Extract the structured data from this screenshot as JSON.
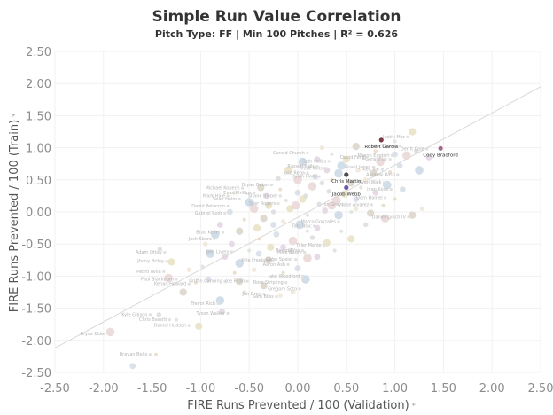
{
  "chart_data": {
    "type": "scatter",
    "title": "Simple Run Value Correlation",
    "subtitle": "Pitch Type: FF | Min 100 Pitches | R² = 0.626",
    "xlabel": "FIRE Runs Prevented / 100 (Validation)",
    "ylabel": "FIRE Runs Prevented / 100 (Train)",
    "axis_marker": "⁎",
    "xlim": [
      -2.5,
      2.5
    ],
    "ylim": [
      -2.5,
      2.5
    ],
    "xticks": [
      "-2.50",
      "-2.00",
      "-1.50",
      "-1.00",
      "-0.50",
      "0.00",
      "0.50",
      "1.00",
      "1.50",
      "2.00",
      "2.50"
    ],
    "yticks": [
      "2.50",
      "2.00",
      "1.50",
      "1.00",
      "0.50",
      "0.00",
      "-0.50",
      "-1.00",
      "-1.50",
      "-2.00",
      "-2.50"
    ],
    "grid": true,
    "trend_line": {
      "x1": -2.5,
      "y1": -2.12,
      "x2": 2.5,
      "y2": 1.95
    },
    "highlighted_points": [
      {
        "label": "Robert Garcia",
        "x": 0.86,
        "y": 1.12,
        "color": "#7a3b46"
      },
      {
        "label": "Cody Bradford",
        "x": 1.47,
        "y": 0.99,
        "color": "#9e6b8e"
      },
      {
        "label": "Chris Martin",
        "x": 0.5,
        "y": 0.58,
        "color": "#4a4a4a"
      },
      {
        "label": "Jacob Webb",
        "x": 0.5,
        "y": 0.38,
        "color": "#6b5aa8"
      }
    ],
    "labeled_points": [
      {
        "label": "Justin Mar",
        "x": 1.13,
        "y": 1.17
      },
      {
        "label": "Jake Thomp",
        "x": 1.05,
        "y": 1.03
      },
      {
        "label": "Gerrit Cole",
        "x": 1.33,
        "y": 0.98
      },
      {
        "label": "Mason Englert",
        "x": 0.97,
        "y": 0.88
      },
      {
        "label": "Gerald Jar",
        "x": 0.95,
        "y": 0.82
      },
      {
        "label": "David Ferg",
        "x": 0.71,
        "y": 0.85
      },
      {
        "label": "Gerald Church",
        "x": 0.1,
        "y": 0.92
      },
      {
        "label": "Grant Jones",
        "x": 0.78,
        "y": 0.7
      },
      {
        "label": "Seth Halbs",
        "x": 0.32,
        "y": 0.79
      },
      {
        "label": "Trent Mills",
        "x": 0.28,
        "y": 0.68
      },
      {
        "label": "Alex Var",
        "x": 0.87,
        "y": 0.66
      },
      {
        "label": "Russell Kells",
        "x": 0.2,
        "y": 0.71
      },
      {
        "label": "Jose Rega",
        "x": 0.1,
        "y": 0.61
      },
      {
        "label": "Andrew Bash",
        "x": 1.03,
        "y": 0.58
      },
      {
        "label": "Dylan Floro",
        "x": 0.22,
        "y": 0.55
      },
      {
        "label": "Ryan Walk",
        "x": 0.89,
        "y": 0.46
      },
      {
        "label": "Ivan Kose",
        "x": 0.96,
        "y": 0.35
      },
      {
        "label": "Dom Hamel",
        "x": 0.9,
        "y": 0.22
      },
      {
        "label": "Jose Alvarez",
        "x": 0.76,
        "y": 0.11
      },
      {
        "label": "Jon Grays",
        "x": 0.5,
        "y": 0.12
      },
      {
        "label": "Daniel Lynch IV",
        "x": 1.14,
        "y": -0.08
      },
      {
        "label": "Michael Kopech",
        "x": -0.57,
        "y": 0.37
      },
      {
        "label": "Evan Phillips",
        "x": -0.45,
        "y": 0.3
      },
      {
        "label": "Bryan Baker",
        "x": -0.27,
        "y": 0.42
      },
      {
        "label": "Shane Bieber",
        "x": -0.18,
        "y": 0.25
      },
      {
        "label": "Sean Helm",
        "x": -0.6,
        "y": 0.2
      },
      {
        "label": "Mark Hale",
        "x": -0.72,
        "y": 0.25
      },
      {
        "label": "Tyler Rogers",
        "x": -0.2,
        "y": 0.13
      },
      {
        "label": "David Peterson",
        "x": -0.72,
        "y": 0.09
      },
      {
        "label": "Gabriel Rodr",
        "x": -0.75,
        "y": -0.02
      },
      {
        "label": "Marco Gonzales",
        "x": 0.42,
        "y": -0.15
      },
      {
        "label": "Tom Blac",
        "x": 0.17,
        "y": -0.22
      },
      {
        "label": "Brad Keller",
        "x": -0.77,
        "y": -0.32
      },
      {
        "label": "Josh Sborz",
        "x": -0.86,
        "y": -0.42
      },
      {
        "label": "Tyler Mahle",
        "x": 0.27,
        "y": -0.52
      },
      {
        "label": "Ben Lively",
        "x": -0.68,
        "y": -0.62
      },
      {
        "label": "Bryan Woo",
        "x": 0.05,
        "y": -0.6
      },
      {
        "label": "Gabe Speier",
        "x": -0.02,
        "y": -0.74
      },
      {
        "label": "Mike Baum",
        "x": 0.07,
        "y": -0.63
      },
      {
        "label": "Kyle Freeland",
        "x": -0.25,
        "y": -0.75
      },
      {
        "label": "Aaron Ash",
        "x": -0.1,
        "y": -0.82
      },
      {
        "label": "Adam Ottav",
        "x": -1.37,
        "y": -0.63
      },
      {
        "label": "Jhony Briley",
        "x": -1.35,
        "y": -0.77
      },
      {
        "label": "Pedro Avila",
        "x": -1.38,
        "y": -0.93
      },
      {
        "label": "Paul Blackburn",
        "x": -1.25,
        "y": -1.05
      },
      {
        "label": "Kenan Howard",
        "x": -1.12,
        "y": -1.12
      },
      {
        "label": "Griffin Canning",
        "x": -0.75,
        "y": -1.08
      },
      {
        "label": "Joe Ryan",
        "x": -0.52,
        "y": -1.08
      },
      {
        "label": "Jake Woodford",
        "x": 0.05,
        "y": -1.0
      },
      {
        "label": "Ross Stripling",
        "x": -0.12,
        "y": -1.1
      },
      {
        "label": "Gregory Soto",
        "x": 0.02,
        "y": -1.2
      },
      {
        "label": "Jon Gray",
        "x": -0.35,
        "y": -1.28
      },
      {
        "label": "Sam Bliss",
        "x": -0.22,
        "y": -1.32
      },
      {
        "label": "Trevor Rich",
        "x": -0.82,
        "y": -1.43
      },
      {
        "label": "Tyson Walker",
        "x": -0.72,
        "y": -1.58
      },
      {
        "label": "Kyle Gibson",
        "x": -1.52,
        "y": -1.6
      },
      {
        "label": "Chris Bassitt",
        "x": -1.32,
        "y": -1.68
      },
      {
        "label": "Daniel Hudson",
        "x": -1.12,
        "y": -1.77
      },
      {
        "label": "Bryce Elder",
        "x": -1.95,
        "y": -1.9
      },
      {
        "label": "Brayan Bello",
        "x": -1.52,
        "y": -2.22
      }
    ],
    "points": [
      {
        "x": -1.46,
        "y": -2.22
      },
      {
        "x": -1.7,
        "y": -2.4
      },
      {
        "x": -1.93,
        "y": -1.87
      },
      {
        "x": -1.43,
        "y": -1.6
      },
      {
        "x": -1.02,
        "y": -1.78
      },
      {
        "x": -1.25,
        "y": -1.68
      },
      {
        "x": -0.78,
        "y": -1.55
      },
      {
        "x": -0.8,
        "y": -1.38
      },
      {
        "x": -0.18,
        "y": -1.3
      },
      {
        "x": -0.6,
        "y": -1.08
      },
      {
        "x": -1.05,
        "y": -1.1
      },
      {
        "x": -0.92,
        "y": -1.05
      },
      {
        "x": -1.33,
        "y": -1.03
      },
      {
        "x": -1.42,
        "y": -0.58
      },
      {
        "x": -1.3,
        "y": -0.78
      },
      {
        "x": -0.98,
        "y": -0.85
      },
      {
        "x": -0.75,
        "y": -0.7
      },
      {
        "x": -0.6,
        "y": -0.8
      },
      {
        "x": -0.45,
        "y": -0.9
      },
      {
        "x": -0.3,
        "y": -0.75
      },
      {
        "x": -0.15,
        "y": -0.95
      },
      {
        "x": 0.0,
        "y": -0.88
      },
      {
        "x": 0.1,
        "y": -0.72
      },
      {
        "x": -0.08,
        "y": -0.6
      },
      {
        "x": -0.28,
        "y": -0.55
      },
      {
        "x": -0.5,
        "y": -0.6
      },
      {
        "x": -0.68,
        "y": -0.5
      },
      {
        "x": -0.85,
        "y": -0.35
      },
      {
        "x": -0.95,
        "y": -0.5
      },
      {
        "x": -0.6,
        "y": -0.3
      },
      {
        "x": -0.4,
        "y": -0.42
      },
      {
        "x": -0.22,
        "y": -0.35
      },
      {
        "x": -0.05,
        "y": -0.45
      },
      {
        "x": 0.15,
        "y": -0.4
      },
      {
        "x": 0.3,
        "y": -0.48
      },
      {
        "x": 0.45,
        "y": -0.3
      },
      {
        "x": 0.2,
        "y": -0.25
      },
      {
        "x": 0.02,
        "y": -0.2
      },
      {
        "x": -0.15,
        "y": -0.15
      },
      {
        "x": -0.35,
        "y": -0.1
      },
      {
        "x": -0.55,
        "y": -0.12
      },
      {
        "x": -0.7,
        "y": 0.0
      },
      {
        "x": -0.45,
        "y": 0.05
      },
      {
        "x": -0.25,
        "y": 0.0
      },
      {
        "x": -0.08,
        "y": 0.05
      },
      {
        "x": 0.1,
        "y": -0.05
      },
      {
        "x": 0.28,
        "y": 0.02
      },
      {
        "x": 0.42,
        "y": -0.05
      },
      {
        "x": 0.6,
        "y": 0.05
      },
      {
        "x": 0.75,
        "y": -0.02
      },
      {
        "x": 0.88,
        "y": 0.1
      },
      {
        "x": 0.6,
        "y": 0.2
      },
      {
        "x": 0.4,
        "y": 0.18
      },
      {
        "x": 0.22,
        "y": 0.12
      },
      {
        "x": 0.05,
        "y": 0.2
      },
      {
        "x": -0.12,
        "y": 0.18
      },
      {
        "x": -0.32,
        "y": 0.25
      },
      {
        "x": -0.5,
        "y": 0.15
      },
      {
        "x": -0.65,
        "y": 0.3
      },
      {
        "x": -0.38,
        "y": 0.38
      },
      {
        "x": -0.18,
        "y": 0.35
      },
      {
        "x": 0.0,
        "y": 0.3
      },
      {
        "x": 0.15,
        "y": 0.4
      },
      {
        "x": 0.32,
        "y": 0.32
      },
      {
        "x": 0.48,
        "y": 0.28
      },
      {
        "x": 0.65,
        "y": 0.38
      },
      {
        "x": 0.8,
        "y": 0.3
      },
      {
        "x": 0.92,
        "y": 0.42
      },
      {
        "x": 0.7,
        "y": 0.5
      },
      {
        "x": 0.55,
        "y": 0.45
      },
      {
        "x": 0.35,
        "y": 0.5
      },
      {
        "x": 0.18,
        "y": 0.55
      },
      {
        "x": 0.0,
        "y": 0.5
      },
      {
        "x": -0.2,
        "y": 0.52
      },
      {
        "x": -0.1,
        "y": 0.65
      },
      {
        "x": 0.12,
        "y": 0.7
      },
      {
        "x": 0.3,
        "y": 0.65
      },
      {
        "x": 0.45,
        "y": 0.72
      },
      {
        "x": 0.62,
        "y": 0.65
      },
      {
        "x": 0.78,
        "y": 0.6
      },
      {
        "x": 0.95,
        "y": 0.62
      },
      {
        "x": 1.05,
        "y": 0.72
      },
      {
        "x": 0.85,
        "y": 0.78
      },
      {
        "x": 0.68,
        "y": 0.85
      },
      {
        "x": 0.5,
        "y": 0.82
      },
      {
        "x": 0.35,
        "y": 0.9
      },
      {
        "x": 0.2,
        "y": 0.82
      },
      {
        "x": 0.05,
        "y": 0.78
      },
      {
        "x": 0.25,
        "y": 1.0
      },
      {
        "x": 0.6,
        "y": 1.02
      },
      {
        "x": 0.8,
        "y": 0.95
      },
      {
        "x": 1.0,
        "y": 0.9
      },
      {
        "x": 1.12,
        "y": 0.88
      },
      {
        "x": 1.22,
        "y": 0.95
      },
      {
        "x": 1.18,
        "y": 1.25
      },
      {
        "x": 1.0,
        "y": 1.1
      },
      {
        "x": 1.35,
        "y": 0.85
      },
      {
        "x": 1.25,
        "y": 0.65
      },
      {
        "x": 1.28,
        "y": 0.05
      },
      {
        "x": 1.18,
        "y": -0.05
      },
      {
        "x": 1.0,
        "y": 0.2
      },
      {
        "x": 1.08,
        "y": 0.35
      },
      {
        "x": 0.9,
        "y": -0.1
      },
      {
        "x": 0.7,
        "y": -0.2
      },
      {
        "x": 0.55,
        "y": -0.42
      },
      {
        "x": 0.38,
        "y": -0.6
      },
      {
        "x": 0.2,
        "y": -0.7
      },
      {
        "x": 0.08,
        "y": -1.05
      },
      {
        "x": -0.05,
        "y": -1.25
      },
      {
        "x": -0.35,
        "y": -1.15
      },
      {
        "x": -0.55,
        "y": -1.25
      },
      {
        "x": -0.25,
        "y": -0.2
      },
      {
        "x": -0.02,
        "y": 0.1
      },
      {
        "x": 0.08,
        "y": 0.25
      },
      {
        "x": -0.42,
        "y": -0.25
      },
      {
        "x": 0.55,
        "y": 0.0
      },
      {
        "x": -0.8,
        "y": -0.2
      },
      {
        "x": -0.9,
        "y": -0.65
      },
      {
        "x": -1.12,
        "y": -0.9
      },
      {
        "x": -1.18,
        "y": -1.25
      },
      {
        "x": -0.65,
        "y": -0.95
      },
      {
        "x": -0.4,
        "y": -0.65
      },
      {
        "x": 0.35,
        "y": 0.1
      },
      {
        "x": 0.25,
        "y": 0.45
      },
      {
        "x": -0.3,
        "y": 0.1
      },
      {
        "x": 0.1,
        "y": -0.3
      },
      {
        "x": -0.15,
        "y": -0.55
      },
      {
        "x": 0.42,
        "y": 0.6
      }
    ],
    "point_palette": [
      "#e8d9c4",
      "#d6dde8",
      "#ead6d6",
      "#dcdcdc",
      "#e6e0c2",
      "#d8e4d6",
      "#e3d3e3",
      "#c9d8e6",
      "#f0e6d8",
      "#d9d2c7"
    ]
  }
}
